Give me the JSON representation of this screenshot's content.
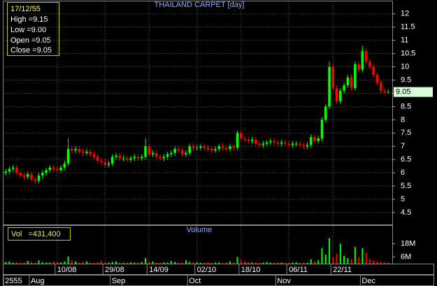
{
  "chart_data": {
    "type": "candlestick",
    "title": "THAILAND CARPET [day]",
    "volume_title": "Volume",
    "info_box": [
      "17/12/55",
      "High =9.15",
      "Low =9.00",
      "Open =9.05",
      "Close =9.05"
    ],
    "volume_box": "Vol   =431,400",
    "up_color": "#00ff00",
    "down_color": "#ff0000",
    "grid": true,
    "xlim": [
      -0.6,
      105.1
    ],
    "xticks": [
      {
        "value": 14,
        "label": "10/08"
      },
      {
        "value": 27,
        "label": "29/08"
      },
      {
        "value": 39,
        "label": "14/09"
      },
      {
        "value": 52,
        "label": "02/10"
      },
      {
        "value": 64,
        "label": "18/10"
      },
      {
        "value": 77,
        "label": "06/11"
      },
      {
        "value": 89,
        "label": "22/11"
      }
    ],
    "month_ticks": [
      {
        "value": 0,
        "label": "2555"
      },
      {
        "value": 7,
        "label": "Aug"
      },
      {
        "value": 29,
        "label": "Sep"
      },
      {
        "value": 50,
        "label": "Oct"
      },
      {
        "value": 74,
        "label": "Nov"
      },
      {
        "value": 97,
        "label": "Dec"
      }
    ],
    "ylim": [
      4.05,
      12.47
    ],
    "yticks": [
      4.5,
      5,
      5.5,
      6,
      6.5,
      7,
      7.5,
      8,
      8.5,
      9,
      9.5,
      10,
      10.5,
      11,
      11.5,
      12
    ],
    "volume_ylim": [
      0,
      34000000
    ],
    "volume_yticks": [
      {
        "value": 6000000,
        "label": "6M"
      },
      {
        "value": 18000000,
        "label": "18M"
      }
    ],
    "open": [
      6.0,
      6.05,
      6.15,
      6.2,
      6.0,
      5.9,
      5.85,
      5.95,
      5.75,
      5.7,
      5.9,
      6.0,
      6.1,
      6.2,
      6.15,
      6.1,
      6.2,
      6.35,
      6.9,
      6.85,
      6.9,
      6.8,
      6.75,
      6.8,
      6.7,
      6.6,
      6.45,
      6.4,
      6.3,
      6.35,
      6.6,
      6.65,
      6.55,
      6.55,
      6.5,
      6.55,
      6.6,
      6.55,
      6.6,
      7.0,
      6.7,
      6.75,
      6.6,
      6.55,
      6.6,
      6.7,
      6.75,
      6.9,
      6.85,
      6.7,
      6.75,
      7.0,
      6.95,
      6.95,
      7.0,
      6.95,
      6.9,
      6.85,
      6.9,
      7.0,
      6.95,
      6.9,
      7.0,
      6.95,
      7.5,
      7.3,
      7.25,
      7.2,
      7.25,
      7.1,
      7.05,
      7.1,
      7.15,
      7.2,
      7.15,
      7.1,
      7.15,
      7.1,
      7.05,
      7.1,
      7.1,
      7.05,
      7.0,
      7.05,
      7.35,
      7.2,
      7.3,
      8.0,
      8.5,
      10.0,
      9.2,
      8.7,
      9.1,
      9.3,
      9.6,
      9.2,
      10.1,
      9.9,
      10.6,
      10.2,
      10.0,
      9.7,
      9.4,
      9.1,
      9.05
    ],
    "high": [
      6.15,
      6.25,
      6.3,
      6.3,
      6.1,
      6.0,
      6.05,
      6.05,
      5.85,
      6.0,
      6.1,
      6.2,
      6.3,
      6.3,
      6.25,
      6.3,
      6.45,
      7.3,
      7.0,
      7.0,
      7.0,
      6.9,
      6.9,
      6.9,
      6.8,
      6.7,
      6.55,
      6.5,
      6.45,
      6.7,
      6.75,
      6.75,
      6.65,
      6.65,
      6.65,
      6.7,
      6.7,
      6.7,
      7.3,
      7.1,
      6.85,
      6.85,
      6.7,
      6.7,
      6.8,
      6.85,
      7.0,
      7.0,
      6.95,
      6.85,
      7.1,
      7.1,
      7.05,
      7.1,
      7.1,
      7.05,
      7.0,
      7.0,
      7.1,
      7.1,
      7.05,
      7.1,
      7.1,
      7.6,
      7.6,
      7.4,
      7.35,
      7.35,
      7.35,
      7.2,
      7.2,
      7.25,
      7.3,
      7.3,
      7.25,
      7.25,
      7.25,
      7.2,
      7.2,
      7.2,
      7.2,
      7.15,
      7.15,
      7.45,
      7.45,
      7.4,
      8.1,
      8.6,
      10.2,
      10.1,
      9.3,
      9.2,
      9.4,
      9.7,
      9.7,
      10.2,
      10.2,
      10.8,
      10.7,
      10.3,
      10.1,
      9.8,
      9.5,
      9.2,
      9.15
    ],
    "low": [
      5.9,
      5.95,
      6.05,
      5.9,
      5.8,
      5.75,
      5.75,
      5.65,
      5.6,
      5.6,
      5.8,
      5.9,
      6.0,
      6.05,
      6.0,
      6.0,
      6.1,
      6.25,
      6.75,
      6.75,
      6.7,
      6.65,
      6.65,
      6.6,
      6.5,
      6.35,
      6.3,
      6.2,
      6.2,
      6.25,
      6.5,
      6.45,
      6.45,
      6.4,
      6.4,
      6.45,
      6.45,
      6.45,
      6.5,
      6.6,
      6.6,
      6.5,
      6.45,
      6.45,
      6.5,
      6.6,
      6.65,
      6.75,
      6.6,
      6.6,
      6.65,
      6.85,
      6.85,
      6.85,
      6.85,
      6.8,
      6.75,
      6.75,
      6.8,
      6.85,
      6.8,
      6.8,
      6.85,
      6.85,
      7.2,
      7.15,
      7.1,
      7.1,
      7.0,
      6.95,
      6.95,
      7.0,
      7.05,
      7.05,
      7.0,
      7.0,
      7.0,
      6.95,
      6.95,
      7.0,
      6.95,
      6.9,
      6.9,
      6.95,
      7.1,
      7.1,
      7.2,
      7.9,
      8.4,
      9.1,
      8.6,
      8.6,
      9.0,
      9.2,
      9.1,
      9.1,
      9.8,
      9.8,
      10.1,
      9.9,
      9.6,
      9.3,
      9.0,
      8.95,
      9.0
    ],
    "close": [
      6.05,
      6.15,
      6.2,
      6.0,
      5.9,
      5.85,
      5.95,
      5.75,
      5.7,
      5.9,
      6.0,
      6.1,
      6.2,
      6.15,
      6.1,
      6.2,
      6.35,
      6.9,
      6.85,
      6.9,
      6.8,
      6.75,
      6.8,
      6.7,
      6.6,
      6.45,
      6.4,
      6.3,
      6.35,
      6.6,
      6.65,
      6.55,
      6.55,
      6.5,
      6.55,
      6.6,
      6.55,
      6.6,
      7.0,
      6.7,
      6.75,
      6.6,
      6.55,
      6.6,
      6.7,
      6.75,
      6.9,
      6.85,
      6.7,
      6.75,
      7.0,
      6.95,
      6.95,
      7.0,
      6.95,
      6.9,
      6.85,
      6.9,
      7.0,
      6.95,
      6.9,
      7.0,
      6.95,
      7.5,
      7.3,
      7.25,
      7.2,
      7.25,
      7.1,
      7.05,
      7.1,
      7.15,
      7.2,
      7.15,
      7.1,
      7.15,
      7.1,
      7.05,
      7.1,
      7.1,
      7.05,
      7.0,
      7.05,
      7.35,
      7.2,
      7.3,
      8.0,
      8.5,
      10.0,
      9.2,
      8.7,
      9.1,
      9.3,
      9.6,
      9.2,
      10.1,
      9.9,
      10.6,
      10.2,
      10.0,
      9.7,
      9.4,
      9.1,
      9.05,
      9.05
    ],
    "volume": [
      1500000,
      2000000,
      1000000,
      1200000,
      800000,
      1000000,
      2500000,
      1500000,
      1000000,
      3000000,
      1200000,
      800000,
      1000000,
      2000000,
      1500000,
      1000000,
      2000000,
      6500000,
      3000000,
      2000000,
      1000000,
      1500000,
      2000000,
      1000000,
      800000,
      1200000,
      2500000,
      1000000,
      800000,
      1500000,
      2000000,
      1000000,
      600000,
      1000000,
      1200000,
      800000,
      1000000,
      1500000,
      5000000,
      1500000,
      2000000,
      1000000,
      800000,
      1200000,
      1000000,
      2500000,
      1500000,
      1000000,
      800000,
      3000000,
      1500000,
      1000000,
      1200000,
      800000,
      1000000,
      1500000,
      800000,
      1000000,
      1200000,
      600000,
      1000000,
      2000000,
      1000000,
      6000000,
      3000000,
      2000000,
      1500000,
      1000000,
      1200000,
      800000,
      1000000,
      1500000,
      1000000,
      800000,
      1200000,
      1000000,
      600000,
      800000,
      1000000,
      1200000,
      800000,
      1000000,
      600000,
      4000000,
      2000000,
      3000000,
      14000000,
      8000000,
      23000000,
      6000000,
      9000000,
      18000000,
      7000000,
      5000000,
      4000000,
      15000000,
      6000000,
      14000000,
      10000000,
      4000000,
      3000000,
      2000000,
      1500000,
      1000000,
      431400
    ]
  }
}
